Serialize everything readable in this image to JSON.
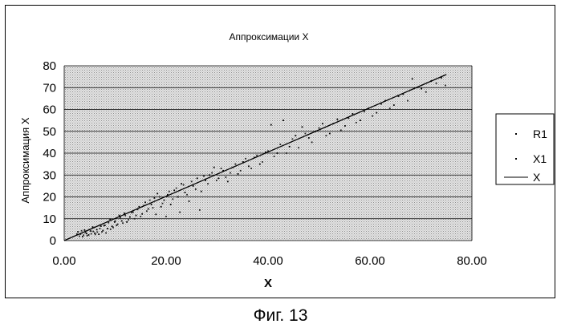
{
  "figure": {
    "caption": "Фиг. 13"
  },
  "chart_data": {
    "type": "scatter",
    "title": "Аппроксимации X",
    "xlabel": "X",
    "ylabel": "Аппроксимация X",
    "xlim": [
      0,
      80
    ],
    "ylim": [
      0,
      80
    ],
    "x_ticks": [
      "0.00",
      "20.00",
      "40.00",
      "60.00",
      "80.00"
    ],
    "y_ticks": [
      "0",
      "10",
      "20",
      "30",
      "40",
      "50",
      "60",
      "70",
      "80"
    ],
    "grid": true,
    "legend_position": "right",
    "legend": [
      "R1",
      "X1",
      "X"
    ],
    "series": [
      {
        "name": "R1",
        "mark": "point",
        "points": [
          [
            2.5,
            3.0
          ],
          [
            3.0,
            2.0
          ],
          [
            3.4,
            4.5
          ],
          [
            3.8,
            2.5
          ],
          [
            4.2,
            3.6
          ],
          [
            4.5,
            2.2
          ],
          [
            4.9,
            5.0
          ],
          [
            5.3,
            3.1
          ],
          [
            5.7,
            4.2
          ],
          [
            6.1,
            2.8
          ],
          [
            6.5,
            3.9
          ],
          [
            7.0,
            5.5
          ],
          [
            7.4,
            4.0
          ],
          [
            7.8,
            6.8
          ],
          [
            8.2,
            3.5
          ],
          [
            8.7,
            8.2
          ],
          [
            9.1,
            5.2
          ],
          [
            9.6,
            6.0
          ],
          [
            10.0,
            9.0
          ],
          [
            10.5,
            7.5
          ],
          [
            11.0,
            10.5
          ],
          [
            11.5,
            8.0
          ],
          [
            12.0,
            11.5
          ],
          [
            12.6,
            9.5
          ],
          [
            13.2,
            12.8
          ],
          [
            13.8,
            10.0
          ],
          [
            14.4,
            14.2
          ],
          [
            15.0,
            11.0
          ],
          [
            15.6,
            16.0
          ],
          [
            16.2,
            13.5
          ],
          [
            16.8,
            18.5
          ],
          [
            17.4,
            15.0
          ],
          [
            18.0,
            12.0
          ],
          [
            18.7,
            20.0
          ],
          [
            19.3,
            17.0
          ],
          [
            20.0,
            11.0
          ],
          [
            20.6,
            22.5
          ],
          [
            21.3,
            19.0
          ],
          [
            22.0,
            24.0
          ],
          [
            22.7,
            13.0
          ],
          [
            23.4,
            25.5
          ],
          [
            24.1,
            21.0
          ],
          [
            25.0,
            27.0
          ],
          [
            25.8,
            23.5
          ],
          [
            26.6,
            14.0
          ],
          [
            27.4,
            29.5
          ],
          [
            28.2,
            26.0
          ],
          [
            29.0,
            31.0
          ],
          [
            29.9,
            27.5
          ],
          [
            30.8,
            33.0
          ],
          [
            31.7,
            29.0
          ],
          [
            32.6,
            31.0
          ],
          [
            33.6,
            35.0
          ],
          [
            34.6,
            32.0
          ],
          [
            35.6,
            37.5
          ],
          [
            36.7,
            33.0
          ],
          [
            37.8,
            39.0
          ],
          [
            38.9,
            36.0
          ],
          [
            40.0,
            41.0
          ],
          [
            41.2,
            38.5
          ],
          [
            42.4,
            44.0
          ],
          [
            43.6,
            40.0
          ],
          [
            44.8,
            46.5
          ],
          [
            46.0,
            42.5
          ],
          [
            47.3,
            49.0
          ],
          [
            48.6,
            45.0
          ],
          [
            50.0,
            51.5
          ],
          [
            51.4,
            48.0
          ],
          [
            52.8,
            53.5
          ],
          [
            54.3,
            50.5
          ],
          [
            55.8,
            56.0
          ],
          [
            57.3,
            54.0
          ],
          [
            58.9,
            59.0
          ],
          [
            60.5,
            57.0
          ],
          [
            62.2,
            62.5
          ],
          [
            63.9,
            60.5
          ],
          [
            65.6,
            66.0
          ],
          [
            67.4,
            64.0
          ],
          [
            69.2,
            70.0
          ],
          [
            71.0,
            68.0
          ],
          [
            73.0,
            72.0
          ],
          [
            74.8,
            71.0
          ]
        ]
      },
      {
        "name": "X1",
        "mark": "point",
        "points": [
          [
            2.7,
            4.0
          ],
          [
            3.2,
            3.0
          ],
          [
            3.6,
            1.8
          ],
          [
            4.0,
            4.8
          ],
          [
            4.4,
            3.2
          ],
          [
            4.8,
            2.6
          ],
          [
            5.2,
            4.4
          ],
          [
            5.6,
            6.2
          ],
          [
            6.0,
            3.4
          ],
          [
            6.4,
            5.0
          ],
          [
            6.8,
            2.9
          ],
          [
            7.2,
            6.6
          ],
          [
            7.6,
            4.6
          ],
          [
            8.0,
            7.0
          ],
          [
            8.5,
            5.5
          ],
          [
            9.0,
            9.8
          ],
          [
            9.4,
            6.5
          ],
          [
            9.9,
            8.5
          ],
          [
            10.3,
            7.0
          ],
          [
            10.8,
            11.5
          ],
          [
            11.3,
            9.0
          ],
          [
            11.8,
            12.5
          ],
          [
            12.3,
            8.5
          ],
          [
            12.9,
            10.8
          ],
          [
            13.5,
            13.0
          ],
          [
            14.1,
            11.5
          ],
          [
            14.7,
            15.5
          ],
          [
            15.3,
            12.2
          ],
          [
            15.9,
            17.5
          ],
          [
            16.5,
            14.5
          ],
          [
            17.1,
            16.5
          ],
          [
            17.7,
            19.5
          ],
          [
            18.3,
            21.5
          ],
          [
            19.0,
            15.5
          ],
          [
            19.6,
            18.5
          ],
          [
            20.3,
            21.0
          ],
          [
            20.9,
            16.5
          ],
          [
            21.6,
            23.0
          ],
          [
            22.3,
            20.0
          ],
          [
            23.0,
            26.0
          ],
          [
            23.7,
            22.0
          ],
          [
            24.5,
            18.0
          ],
          [
            25.3,
            25.0
          ],
          [
            26.1,
            28.5
          ],
          [
            26.9,
            22.5
          ],
          [
            27.7,
            27.5
          ],
          [
            28.5,
            30.0
          ],
          [
            29.4,
            33.5
          ],
          [
            30.3,
            28.5
          ],
          [
            31.2,
            32.0
          ],
          [
            32.1,
            27.0
          ],
          [
            33.1,
            33.5
          ],
          [
            34.1,
            30.5
          ],
          [
            35.1,
            36.0
          ],
          [
            36.2,
            34.0
          ],
          [
            37.3,
            38.0
          ],
          [
            38.4,
            35.0
          ],
          [
            39.5,
            40.5
          ],
          [
            40.6,
            53.0
          ],
          [
            41.8,
            40.0
          ],
          [
            43.0,
            55.0
          ],
          [
            44.2,
            43.0
          ],
          [
            45.4,
            48.0
          ],
          [
            46.7,
            52.0
          ],
          [
            48.0,
            47.0
          ],
          [
            49.3,
            50.0
          ],
          [
            50.7,
            53.5
          ],
          [
            52.1,
            49.0
          ],
          [
            53.6,
            55.5
          ],
          [
            55.1,
            52.5
          ],
          [
            56.6,
            58.0
          ],
          [
            58.1,
            55.0
          ],
          [
            59.7,
            60.5
          ],
          [
            61.3,
            58.5
          ],
          [
            63.0,
            64.0
          ],
          [
            64.7,
            62.0
          ],
          [
            66.5,
            67.0
          ],
          [
            68.3,
            74.0
          ],
          [
            70.1,
            69.5
          ],
          [
            72.0,
            73.0
          ],
          [
            74.0,
            74.5
          ]
        ]
      },
      {
        "name": "X",
        "mark": "line",
        "points": [
          [
            0,
            0
          ],
          [
            75,
            76
          ]
        ]
      }
    ]
  }
}
